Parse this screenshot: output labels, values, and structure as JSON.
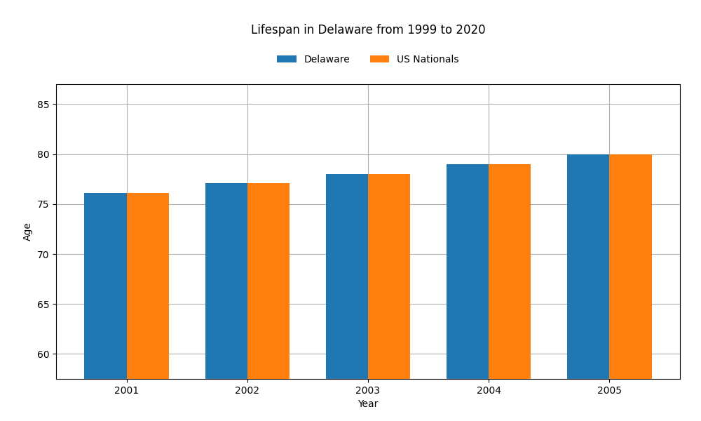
{
  "chart_data": {
    "type": "bar",
    "title": "Lifespan in Delaware from 1999 to 2020",
    "x_label": "Year",
    "y_label": "Age",
    "categories": [
      "2001",
      "2002",
      "2003",
      "2004",
      "2005"
    ],
    "series": [
      {
        "name": "Delaware",
        "values": [
          76.1,
          77.1,
          78.0,
          79.0,
          80.0
        ]
      },
      {
        "name": "US Nationals",
        "values": [
          76.1,
          77.1,
          78.0,
          79.0,
          80.0
        ]
      }
    ],
    "ylim": [
      57.5,
      87
    ],
    "yticks": [
      60,
      65,
      70,
      75,
      80,
      85
    ],
    "grid": true,
    "legend": "upper center"
  }
}
